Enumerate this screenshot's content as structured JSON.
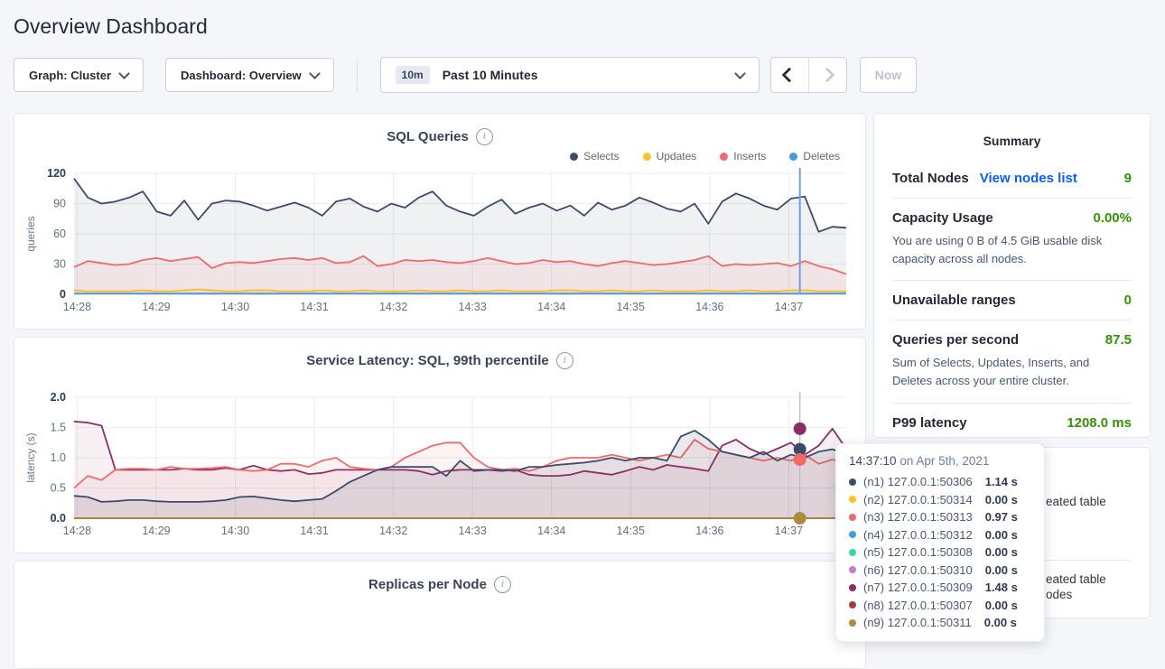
{
  "page_title": "Overview Dashboard",
  "controls": {
    "graph_dropdown": "Graph: Cluster",
    "dashboard_dropdown": "Dashboard: Overview",
    "time_badge": "10m",
    "time_label": "Past 10 Minutes",
    "now_button": "Now"
  },
  "summary": {
    "title": "Summary",
    "value_color": "#319400",
    "link_color": "#0f5ef5",
    "rows": [
      {
        "label": "Total Nodes",
        "link": "View nodes list",
        "value": "9"
      },
      {
        "label": "Capacity Usage",
        "value": "0.00%",
        "desc": "You are using 0 B of 4.5 GiB usable disk capacity across all nodes."
      },
      {
        "label": "Unavailable ranges",
        "value": "0"
      },
      {
        "label": "Queries per second",
        "value": "87.5",
        "desc": "Sum of Selects, Updates, Inserts, and Deletes across your entire cluster."
      },
      {
        "label": "P99 latency",
        "value": "1208.0 ms"
      }
    ]
  },
  "tooltip": {
    "time": "14:37:10",
    "date_suffix": " on Apr 5th, 2021",
    "rows": [
      {
        "color": "#3d4b6b",
        "node": "(n1) 127.0.0.1:50306",
        "value": "1.14 s"
      },
      {
        "color": "#ffc226",
        "node": "(n2) 127.0.0.1:50314",
        "value": "0.00 s"
      },
      {
        "color": "#f26969",
        "node": "(n3) 127.0.0.1:50313",
        "value": "0.97 s"
      },
      {
        "color": "#429edd",
        "node": "(n4) 127.0.0.1:50312",
        "value": "0.00 s"
      },
      {
        "color": "#3cd8a2",
        "node": "(n5) 127.0.0.1:50308",
        "value": "0.00 s"
      },
      {
        "color": "#cc79cc",
        "node": "(n6) 127.0.0.1:50310",
        "value": "0.00 s"
      },
      {
        "color": "#8c2c64",
        "node": "(n7) 127.0.0.1:50309",
        "value": "1.48 s"
      },
      {
        "color": "#9e3c47",
        "node": "(n8) 127.0.0.1:50307",
        "value": "0.00 s"
      },
      {
        "color": "#ab8d3f",
        "node": "(n9) 127.0.0.1:50311",
        "value": "0.00 s"
      }
    ]
  },
  "events_panel": {
    "fragments": [
      "eated table",
      "eated table",
      "odes"
    ]
  },
  "chart_data": [
    {
      "type": "area",
      "title": "SQL Queries",
      "ylabel": "queries",
      "ylim": [
        0,
        120
      ],
      "yticks": [
        "0",
        "30",
        "60",
        "90",
        "120"
      ],
      "xticks": [
        "14:28",
        "14:29",
        "14:30",
        "14:31",
        "14:32",
        "14:33",
        "14:34",
        "14:35",
        "14:36",
        "14:37"
      ],
      "grid": true,
      "legend_position": "top-right",
      "hover": {
        "x_frac": 0.94,
        "line_color": "#6f9fe8",
        "line_width": 2,
        "dots": []
      },
      "series": [
        {
          "name": "Selects",
          "color": "#3d4b6b",
          "fill_opacity": 0.08,
          "values": [
            115,
            96,
            90,
            92,
            96,
            102,
            82,
            78,
            93,
            74,
            90,
            93,
            92,
            88,
            83,
            87,
            91,
            86,
            78,
            92,
            95,
            87,
            82,
            90,
            86,
            96,
            102,
            88,
            82,
            78,
            87,
            94,
            80,
            86,
            90,
            83,
            88,
            78,
            91,
            84,
            88,
            96,
            91,
            85,
            82,
            90,
            70,
            92,
            100,
            95,
            88,
            84,
            95,
            97,
            62,
            67,
            66
          ]
        },
        {
          "name": "Updates",
          "color": "#ffc226",
          "fill_opacity": 0.15,
          "values": [
            4,
            3,
            3,
            3,
            3,
            4,
            3,
            3,
            4,
            5,
            4,
            3,
            3,
            4,
            4,
            3,
            3,
            3,
            4,
            3,
            3,
            4,
            3,
            3,
            3,
            4,
            3,
            3,
            4,
            3,
            3,
            4,
            3,
            3,
            3,
            4,
            4,
            3,
            3,
            4,
            3,
            3,
            4,
            3,
            3,
            3,
            4,
            3,
            3,
            4,
            3,
            3,
            4,
            4,
            3,
            3,
            3
          ]
        },
        {
          "name": "Inserts",
          "color": "#f26969",
          "fill_opacity": 0.09,
          "values": [
            27,
            33,
            31,
            29,
            30,
            34,
            36,
            33,
            35,
            37,
            26,
            31,
            32,
            31,
            33,
            35,
            36,
            34,
            36,
            31,
            32,
            38,
            28,
            30,
            34,
            33,
            34,
            32,
            31,
            33,
            36,
            33,
            30,
            31,
            34,
            32,
            33,
            30,
            28,
            31,
            33,
            31,
            29,
            30,
            32,
            34,
            38,
            28,
            30,
            29,
            30,
            31,
            28,
            33,
            28,
            25,
            20
          ]
        },
        {
          "name": "Deletes",
          "color": "#429edd",
          "fill_opacity": 0.2,
          "flat": 0.8
        }
      ]
    },
    {
      "type": "area",
      "title": "Service Latency: SQL, 99th percentile",
      "ylabel": "latency (s)",
      "ylim": [
        0,
        2.0
      ],
      "yticks": [
        "0.0",
        "0.5",
        "1.0",
        "1.5",
        "2.0"
      ],
      "xticks": [
        "14:28",
        "14:29",
        "14:30",
        "14:31",
        "14:32",
        "14:33",
        "14:34",
        "14:35",
        "14:36",
        "14:37"
      ],
      "grid": true,
      "legend_position": "hidden",
      "hover": {
        "x_frac": 0.94,
        "line_color": "#b9c2cf",
        "line_width": 1.5,
        "dots": [
          {
            "value": 1.48,
            "color": "#8c2c64"
          },
          {
            "value": 1.14,
            "color": "#3d4b6b"
          },
          {
            "value": 0.97,
            "color": "#f26969"
          },
          {
            "value": 0,
            "color": "#ab8d3f"
          }
        ]
      },
      "series": [
        {
          "name": "(n2) 127.0.0.1:50314",
          "color": "#ffc226",
          "flat": 0
        },
        {
          "name": "(n4) 127.0.0.1:50312",
          "color": "#429edd",
          "flat": 0
        },
        {
          "name": "(n5) 127.0.0.1:50308",
          "color": "#3cd8a2",
          "flat": 0
        },
        {
          "name": "(n6) 127.0.0.1:50310",
          "color": "#cc79cc",
          "flat": 0
        },
        {
          "name": "(n8) 127.0.0.1:50307",
          "color": "#9e3c47",
          "flat": 0
        },
        {
          "name": "(n7) 127.0.0.1:50309",
          "color": "#8c2c64",
          "fill_opacity": 0.07,
          "values": [
            1.6,
            1.58,
            1.53,
            0.8,
            0.8,
            0.8,
            0.8,
            0.8,
            0.82,
            0.8,
            0.8,
            0.83,
            0.8,
            0.87,
            0.8,
            0.78,
            0.8,
            0.73,
            0.75,
            0.8,
            0.8,
            0.8,
            0.8,
            0.8,
            0.8,
            0.78,
            0.72,
            0.78,
            0.8,
            0.8,
            0.8,
            0.78,
            0.8,
            0.72,
            0.7,
            0.7,
            0.72,
            0.78,
            0.75,
            0.72,
            0.78,
            0.85,
            0.8,
            0.88,
            0.85,
            0.82,
            0.78,
            1.2,
            1.3,
            1.15,
            1.05,
            1.15,
            1.25,
            1.05,
            1.2,
            1.48,
            1.15
          ]
        },
        {
          "name": "(n3) 127.0.0.1:50313",
          "color": "#f26969",
          "fill_opacity": 0.08,
          "values": [
            0.5,
            0.7,
            0.63,
            0.8,
            0.82,
            0.82,
            0.8,
            0.85,
            0.82,
            0.82,
            0.83,
            0.85,
            0.8,
            0.78,
            0.8,
            0.9,
            0.9,
            0.85,
            0.95,
            1.0,
            0.85,
            0.82,
            0.8,
            0.85,
            1.0,
            1.1,
            1.2,
            1.25,
            1.25,
            1.0,
            0.85,
            0.8,
            0.82,
            0.78,
            0.85,
            0.95,
            1.0,
            1.0,
            1.0,
            1.05,
            1.0,
            0.95,
            1.0,
            1.05,
            1.0,
            1.3,
            1.15,
            1.1,
            1.05,
            1.0,
            0.95,
            1.0,
            0.95,
            1.05,
            0.9,
            0.97,
            0.9
          ]
        },
        {
          "name": "(n1) 127.0.0.1:50306",
          "color": "#3d4b6b",
          "fill_opacity": 0.12,
          "values": [
            0.37,
            0.35,
            0.27,
            0.28,
            0.3,
            0.3,
            0.28,
            0.27,
            0.27,
            0.27,
            0.28,
            0.3,
            0.35,
            0.36,
            0.33,
            0.3,
            0.28,
            0.3,
            0.32,
            0.45,
            0.6,
            0.7,
            0.8,
            0.85,
            0.85,
            0.85,
            0.85,
            0.7,
            0.95,
            0.78,
            0.8,
            0.8,
            0.78,
            0.85,
            0.85,
            0.88,
            0.9,
            0.92,
            0.95,
            1.0,
            0.95,
            1.0,
            1.0,
            0.95,
            1.35,
            1.45,
            1.3,
            1.1,
            1.05,
            1.0,
            1.1,
            0.95,
            1.05,
            1.0,
            1.1,
            1.14,
            1.05
          ]
        },
        {
          "name": "(n9) 127.0.0.1:50311",
          "color": "#ab8d3f",
          "flat": 0
        }
      ]
    },
    {
      "type": "area",
      "title": "Replicas per Node",
      "series": []
    }
  ]
}
